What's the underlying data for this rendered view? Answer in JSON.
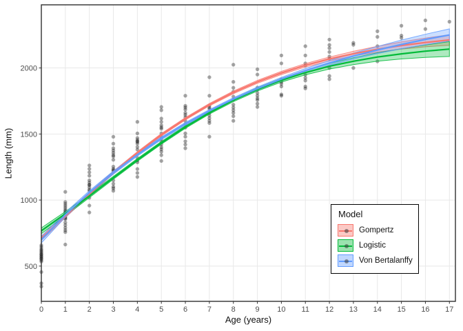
{
  "chart_data": {
    "type": "scatter",
    "title": "",
    "xlabel": "Age (years)",
    "ylabel": "Length (mm)",
    "grid": "major-only",
    "legend_position": "inside-bottom-right",
    "axes": {
      "x": {
        "domain": [
          0,
          17.25
        ],
        "ticks": [
          0,
          1,
          2,
          3,
          4,
          5,
          6,
          7,
          8,
          9,
          10,
          11,
          12,
          13,
          14,
          15,
          16,
          17
        ]
      },
      "y": {
        "domain": [
          233,
          2478
        ],
        "ticks": [
          500,
          1000,
          1500,
          2000
        ]
      }
    },
    "style": {
      "grid_color": "#E8E8E8",
      "panel_border_color": "#2F2F2F",
      "tick_color": "#333333",
      "tick_text_color": "#4D4D4D",
      "point_color": "rgba(0,0,0,0.35)",
      "background": "#FFFFFF"
    },
    "legend": {
      "title": "Model",
      "items": [
        {
          "label": "Gompertz",
          "color": "#F8766D",
          "fill": "#FBC9C5"
        },
        {
          "label": "Logistic",
          "color": "#00BA38",
          "fill": "#9BE3AF"
        },
        {
          "label": "Von Bertalanffy",
          "color": "#619CFF",
          "fill": "#C0D7FF"
        }
      ]
    },
    "series": [
      {
        "name": "Gompertz",
        "color": "#F8766D",
        "ages": [
          0,
          1,
          2,
          3,
          4,
          5,
          6,
          7,
          8,
          9,
          10,
          11,
          12,
          13,
          14,
          15,
          16,
          17
        ],
        "center": [
          711,
          880,
          1047,
          1208,
          1357,
          1494,
          1615,
          1722,
          1815,
          1895,
          1962,
          2020,
          2068,
          2108,
          2142,
          2170,
          2193,
          2212
        ],
        "lo": [
          695,
          867,
          1036,
          1198,
          1348,
          1485,
          1606,
          1713,
          1805,
          1884,
          1950,
          2007,
          2053,
          2090,
          2120,
          2143,
          2160,
          2172
        ],
        "hi": [
          727,
          893,
          1058,
          1218,
          1366,
          1503,
          1624,
          1731,
          1825,
          1906,
          1974,
          2033,
          2083,
          2126,
          2164,
          2197,
          2226,
          2252
        ]
      },
      {
        "name": "Logistic",
        "color": "#00BA38",
        "ages": [
          0,
          1,
          2,
          3,
          4,
          5,
          6,
          7,
          8,
          9,
          10,
          11,
          12,
          13,
          14,
          15,
          16,
          17
        ],
        "center": [
          767,
          896,
          1031,
          1168,
          1304,
          1433,
          1553,
          1661,
          1756,
          1838,
          1907,
          1965,
          2013,
          2051,
          2083,
          2107,
          2127,
          2143
        ],
        "lo": [
          745,
          880,
          1018,
          1157,
          1294,
          1423,
          1543,
          1651,
          1745,
          1826,
          1893,
          1948,
          1992,
          2025,
          2051,
          2068,
          2080,
          2087
        ],
        "hi": [
          789,
          912,
          1044,
          1179,
          1314,
          1443,
          1563,
          1671,
          1767,
          1850,
          1921,
          1982,
          2034,
          2077,
          2115,
          2146,
          2174,
          2199
        ]
      },
      {
        "name": "Von Bertalanffy",
        "color": "#619CFF",
        "ages": [
          0,
          1,
          2,
          3,
          4,
          5,
          6,
          7,
          8,
          9,
          10,
          11,
          12,
          13,
          14,
          15,
          16,
          17
        ],
        "center": [
          700,
          888,
          1056,
          1208,
          1344,
          1467,
          1577,
          1675,
          1764,
          1844,
          1916,
          1980,
          2038,
          2090,
          2136,
          2178,
          2216,
          2250
        ],
        "lo": [
          675,
          870,
          1042,
          1196,
          1333,
          1457,
          1567,
          1665,
          1753,
          1832,
          1903,
          1965,
          2020,
          2068,
          2109,
          2145,
          2177,
          2204
        ],
        "hi": [
          725,
          906,
          1070,
          1220,
          1355,
          1477,
          1587,
          1685,
          1775,
          1856,
          1929,
          1995,
          2056,
          2112,
          2163,
          2211,
          2255,
          2296
        ]
      }
    ],
    "points": [
      {
        "age": 0,
        "lengths": [
          345,
          370,
          455,
          535,
          545,
          555,
          560,
          570,
          575,
          585,
          590,
          600,
          610,
          620,
          630,
          645,
          658
        ]
      },
      {
        "age": 1,
        "lengths": [
          663,
          757,
          772,
          790,
          810,
          830,
          855,
          862,
          870,
          878,
          886,
          895,
          905,
          915,
          925,
          940,
          955,
          970,
          985,
          1062
        ]
      },
      {
        "age": 2,
        "lengths": [
          906,
          958,
          1017,
          1043,
          1070,
          1080,
          1097,
          1115,
          1115,
          1132,
          1149,
          1184,
          1210,
          1236,
          1262
        ]
      },
      {
        "age": 3,
        "lengths": [
          1070,
          1088,
          1100,
          1123,
          1149,
          1219,
          1227,
          1236,
          1253,
          1305,
          1330,
          1340,
          1357,
          1375,
          1392,
          1427,
          1479
        ]
      },
      {
        "age": 4,
        "lengths": [
          1175,
          1205,
          1235,
          1285,
          1300,
          1320,
          1350,
          1382,
          1402,
          1427,
          1440,
          1445,
          1455,
          1470,
          1505,
          1592
        ]
      },
      {
        "age": 5,
        "lengths": [
          1296,
          1340,
          1366,
          1384,
          1400,
          1420,
          1440,
          1462,
          1479,
          1505,
          1540,
          1550,
          1566,
          1592,
          1617,
          1680,
          1705
        ]
      },
      {
        "age": 6,
        "lengths": [
          1392,
          1420,
          1445,
          1480,
          1505,
          1548,
          1575,
          1600,
          1627,
          1645,
          1660,
          1685,
          1700,
          1713,
          1790
        ]
      },
      {
        "age": 7,
        "lengths": [
          1480,
          1583,
          1600,
          1620,
          1640,
          1660,
          1690,
          1700,
          1715,
          1790,
          1930
        ]
      },
      {
        "age": 8,
        "lengths": [
          1600,
          1635,
          1660,
          1680,
          1700,
          1722,
          1760,
          1783,
          1820,
          1850,
          1895,
          2025
        ]
      },
      {
        "age": 9,
        "lengths": [
          1705,
          1730,
          1757,
          1770,
          1790,
          1810,
          1835,
          1852,
          1950,
          1990
        ]
      },
      {
        "age": 10,
        "lengths": [
          1790,
          1800,
          1860,
          1880,
          1895,
          1913,
          2035,
          2095
        ]
      },
      {
        "age": 11,
        "lengths": [
          1845,
          1860,
          1905,
          1925,
          1948,
          2017,
          2035,
          2095,
          2165
        ]
      },
      {
        "age": 12,
        "lengths": [
          1915,
          1939,
          2000,
          2070,
          2087,
          2121,
          2150,
          2174,
          2215
        ]
      },
      {
        "age": 13,
        "lengths": [
          2000,
          2175,
          2190
        ]
      },
      {
        "age": 14,
        "lengths": [
          2050,
          2165,
          2235,
          2278
        ]
      },
      {
        "age": 15,
        "lengths": [
          2228,
          2245,
          2320
        ]
      },
      {
        "age": 16,
        "lengths": [
          2295,
          2360
        ]
      },
      {
        "age": 17,
        "lengths": [
          2350
        ]
      }
    ]
  }
}
